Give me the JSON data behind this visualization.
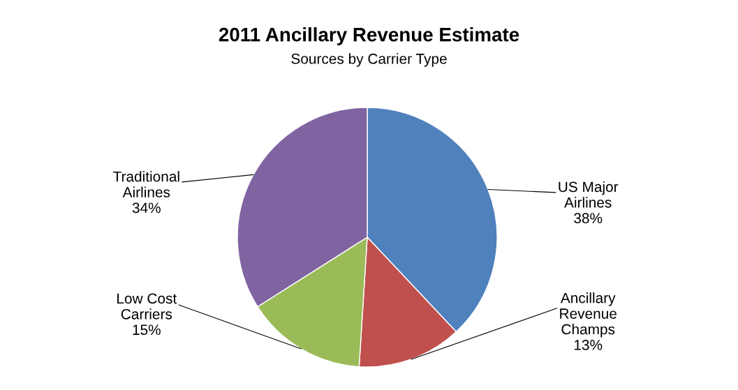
{
  "chart_data": {
    "type": "pie",
    "title": "2011 Ancillary Revenue Estimate",
    "subtitle": "Sources by Carrier Type",
    "categories": [
      "US Major\nAirlines",
      "Ancillary\nRevenue\nChamps",
      "Low Cost\nCarriers",
      "Traditional\nAirlines"
    ],
    "values": [
      38,
      13,
      15,
      34
    ],
    "value_labels": [
      "38%",
      "13%",
      "15%",
      "34%"
    ],
    "colors": [
      "#4f81bd",
      "#c0504d",
      "#9bbb59",
      "#8064a2"
    ],
    "legend": false
  }
}
